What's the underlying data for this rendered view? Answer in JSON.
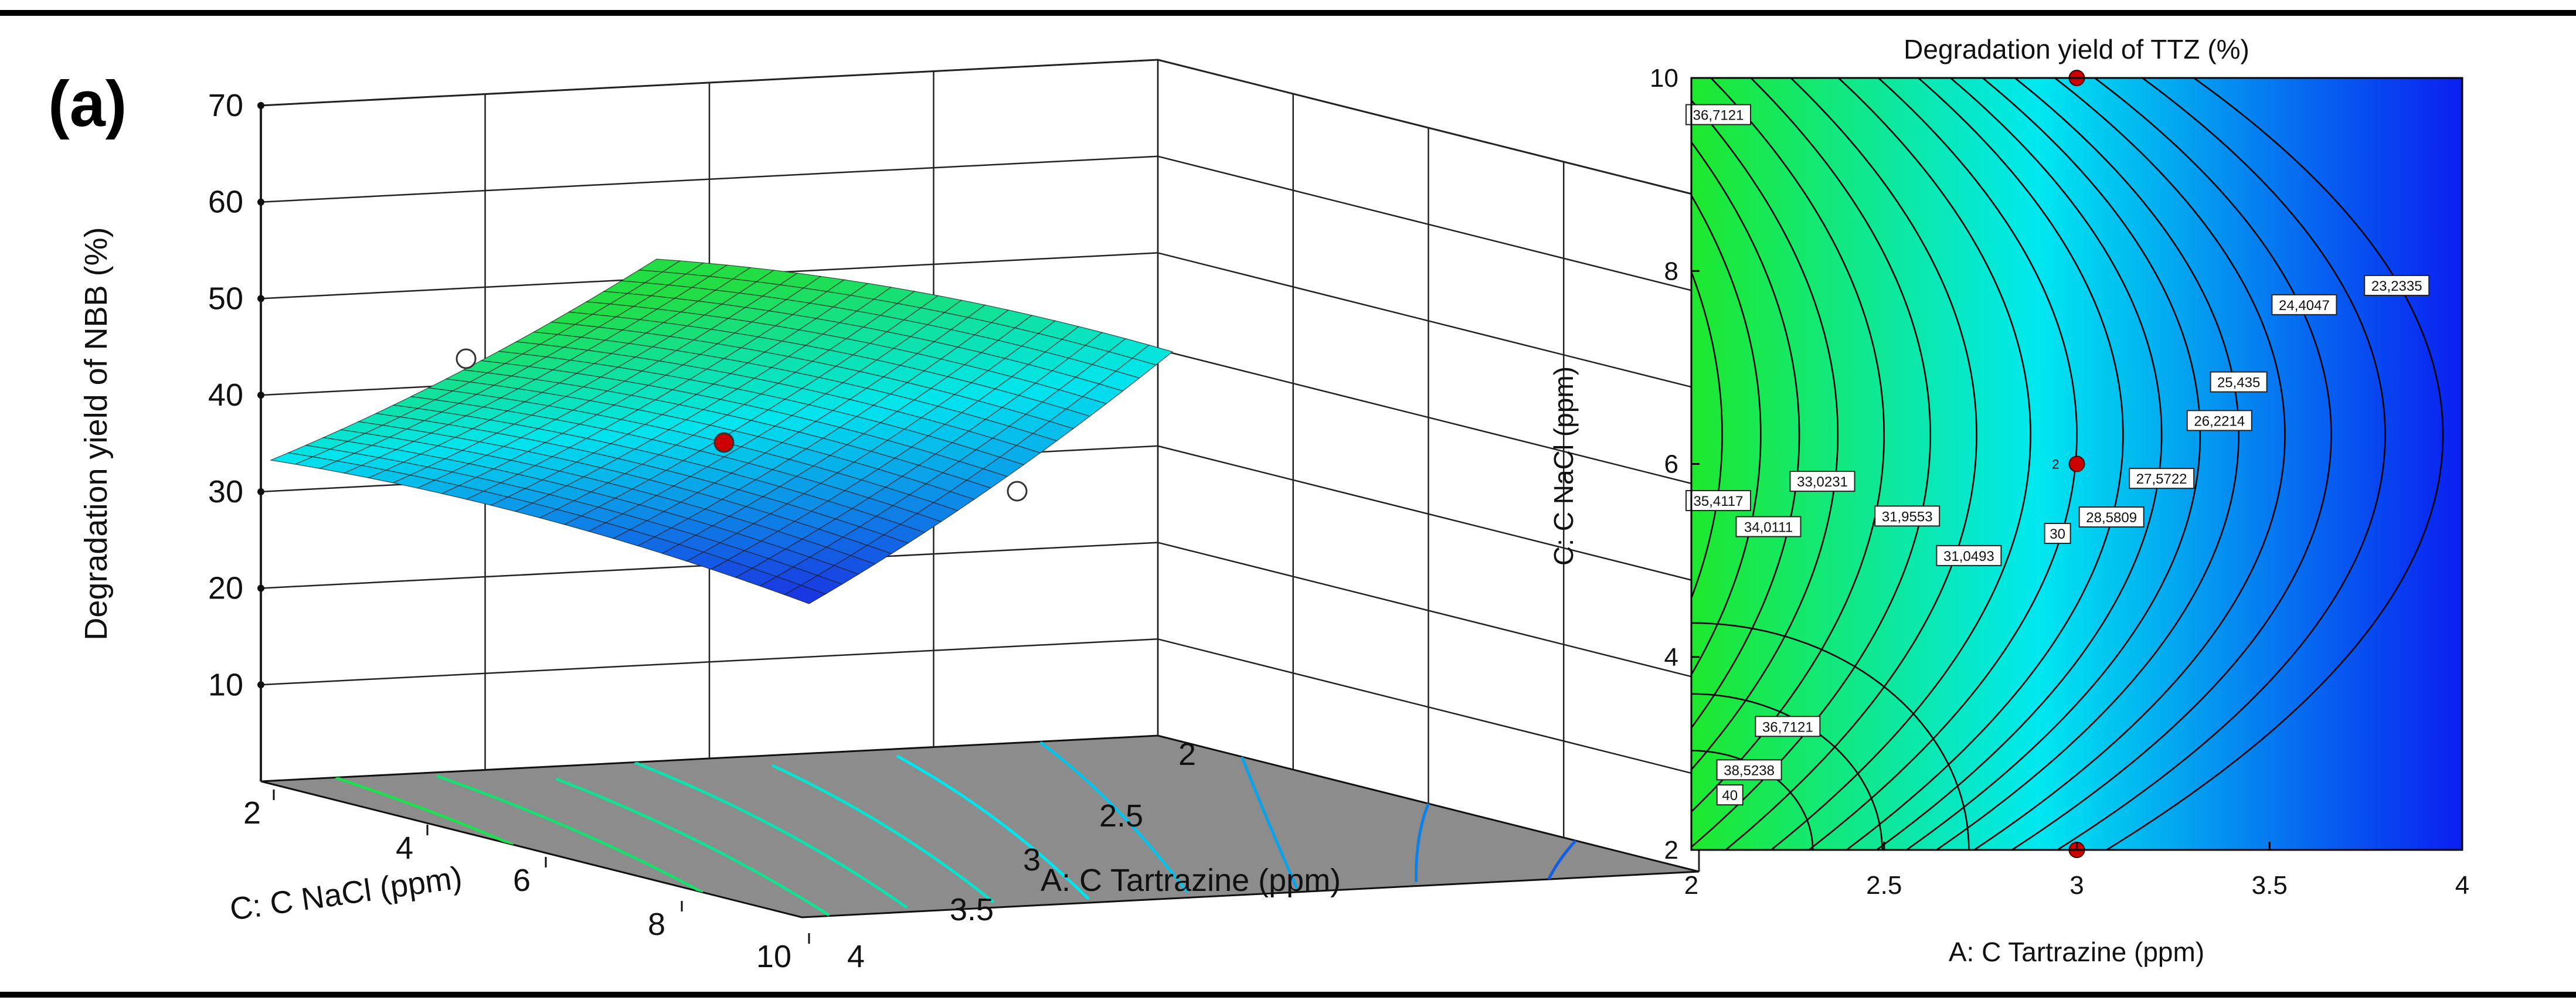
{
  "panel_label": "(a)",
  "chart_data": [
    {
      "type": "surface3d",
      "zlabel": "Degradation yield of NBB (%)",
      "xlabel": "A: C Tartrazine (ppm)",
      "ylabel": "C: C NaCl (ppm)",
      "x_ticks": [
        "2",
        "2.5",
        "3",
        "3.5",
        "4"
      ],
      "y_ticks": [
        "2",
        "4",
        "6",
        "8",
        "10"
      ],
      "z_ticks": [
        "10",
        "20",
        "30",
        "40",
        "50",
        "60",
        "70"
      ],
      "xlim": [
        2,
        4
      ],
      "ylim": [
        2,
        10
      ],
      "zlim": [
        0,
        70
      ],
      "grid": true,
      "surface_corners": [
        {
          "x": 2,
          "y": 2,
          "z": 47
        },
        {
          "x": 4,
          "y": 2,
          "z": 41
        },
        {
          "x": 4,
          "y": 10,
          "z": 21
        },
        {
          "x": 2,
          "y": 10,
          "z": 29
        }
      ],
      "design_points": [
        {
          "x": 3,
          "y": 6,
          "z": 33,
          "color": "#cc0000"
        },
        {
          "x": 2.3,
          "y": 3.2,
          "z": 44,
          "color": "#ffffff"
        },
        {
          "x": 3.6,
          "y": 8.5,
          "z": 26,
          "color": "#ffffff"
        }
      ],
      "colors": {
        "low": "#1a2fe0",
        "mid": "#00e5ee",
        "high": "#22dd44",
        "floor": "#8c8c8c"
      }
    },
    {
      "type": "contour",
      "title": "Degradation yield of TTZ (%)",
      "xlabel": "A: C Tartrazine (ppm)",
      "ylabel": "C: C NaCl (ppm)",
      "x_ticks": [
        "2",
        "2.5",
        "3",
        "3.5",
        "4"
      ],
      "y_ticks": [
        "2",
        "4",
        "6",
        "8",
        "10"
      ],
      "xlim": [
        2,
        4
      ],
      "ylim": [
        2,
        10
      ],
      "contour_labels": [
        {
          "text": "36,7121",
          "x": 2.07,
          "y": 9.62
        },
        {
          "text": "35,4117",
          "x": 2.07,
          "y": 5.62
        },
        {
          "text": "34,0111",
          "x": 2.2,
          "y": 5.35
        },
        {
          "text": "33,0231",
          "x": 2.34,
          "y": 5.82
        },
        {
          "text": "31,9553",
          "x": 2.56,
          "y": 5.46
        },
        {
          "text": "31,0493",
          "x": 2.72,
          "y": 5.05
        },
        {
          "text": "30",
          "x": 2.95,
          "y": 5.28
        },
        {
          "text": "28,5809",
          "x": 3.09,
          "y": 5.45
        },
        {
          "text": "27,5722",
          "x": 3.22,
          "y": 5.85
        },
        {
          "text": "26,2214",
          "x": 3.37,
          "y": 6.45
        },
        {
          "text": "25,435",
          "x": 3.42,
          "y": 6.85
        },
        {
          "text": "24,4047",
          "x": 3.59,
          "y": 7.65
        },
        {
          "text": "23,2335",
          "x": 3.83,
          "y": 7.85
        },
        {
          "text": "36,7121",
          "x": 2.25,
          "y": 3.28
        },
        {
          "text": "38,5238",
          "x": 2.15,
          "y": 2.83
        },
        {
          "text": "40",
          "x": 2.1,
          "y": 2.57
        }
      ],
      "design_points": [
        {
          "x": 3,
          "y": 10,
          "label": ""
        },
        {
          "x": 3,
          "y": 6,
          "label": "2"
        },
        {
          "x": 3,
          "y": 2,
          "label": ""
        }
      ],
      "colors": {
        "low": "#0a1ef0",
        "mid": "#00e8f0",
        "high": "#1ee82c",
        "contour_line": "#000000",
        "point": "#cc0000"
      }
    }
  ]
}
